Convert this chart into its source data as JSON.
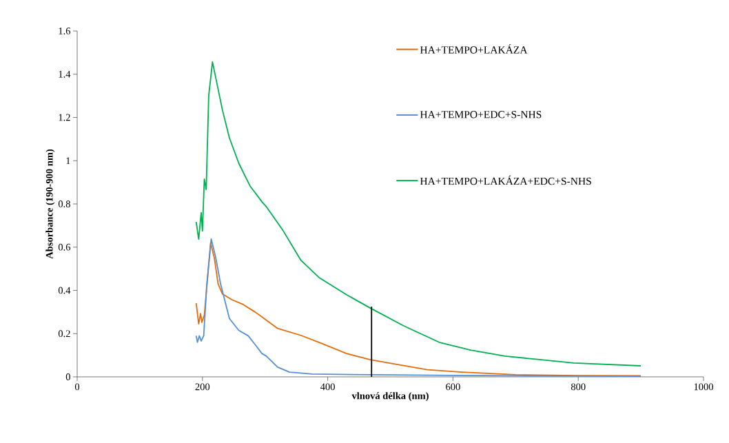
{
  "chart_data": {
    "type": "line",
    "xlabel": "vlnová délka (nm)",
    "ylabel": "Absorbance (190-900 nm)",
    "xlim": [
      0,
      1000
    ],
    "ylim": [
      0,
      1.6
    ],
    "xticks": [
      0,
      200,
      400,
      600,
      800,
      1000
    ],
    "yticks": [
      0,
      0.2,
      0.4,
      0.6,
      0.8,
      1,
      1.2,
      1.4,
      1.6
    ],
    "grid": false,
    "legend": "top right",
    "marker": "none",
    "line_style": "solid",
    "series": [
      {
        "name": "HA+TEMPO+LAKÁZA",
        "color": "#e36c0a",
        "x": [
          190,
          194,
          197,
          199,
          203,
          208,
          213,
          219,
          225,
          232,
          247,
          265,
          284,
          295,
          320,
          357,
          386,
          430,
          467,
          504,
          559,
          614,
          700,
          800,
          900
        ],
        "values": [
          0.341,
          0.245,
          0.293,
          0.252,
          0.285,
          0.45,
          0.62,
          0.55,
          0.43,
          0.383,
          0.357,
          0.335,
          0.3,
          0.277,
          0.224,
          0.192,
          0.16,
          0.108,
          0.08,
          0.061,
          0.033,
          0.022,
          0.01,
          0.006,
          0.005
        ]
      },
      {
        "name": "HA+TEMPO+EDC+S-NHS",
        "color": "#558ed5",
        "x": [
          190,
          192,
          195,
          198,
          202,
          207,
          214,
          221,
          229,
          243,
          258,
          273,
          284,
          295,
          302,
          320,
          339,
          375,
          467,
          600,
          700,
          900
        ],
        "values": [
          0.19,
          0.16,
          0.19,
          0.166,
          0.19,
          0.43,
          0.638,
          0.555,
          0.43,
          0.27,
          0.215,
          0.19,
          0.15,
          0.108,
          0.096,
          0.045,
          0.022,
          0.013,
          0.01,
          0.007,
          0.005,
          0.003
        ]
      },
      {
        "name": "HA+TEMPO+LAKÁZA+EDC+S-NHS",
        "color": "#00b050",
        "x": [
          190,
          194,
          198,
          200,
          203,
          206,
          210,
          216,
          232,
          243,
          258,
          276,
          295,
          302,
          328,
          357,
          386,
          430,
          467,
          522,
          578,
          628,
          683,
          738,
          793,
          900
        ],
        "values": [
          0.717,
          0.637,
          0.76,
          0.675,
          0.915,
          0.867,
          1.3,
          1.457,
          1.233,
          1.106,
          0.988,
          0.883,
          0.81,
          0.787,
          0.68,
          0.54,
          0.46,
          0.38,
          0.32,
          0.235,
          0.16,
          0.124,
          0.096,
          0.08,
          0.064,
          0.051
        ]
      },
      {
        "color": "#000000",
        "x": [
          470,
          470
        ],
        "values": [
          0,
          0.325
        ]
      }
    ]
  }
}
